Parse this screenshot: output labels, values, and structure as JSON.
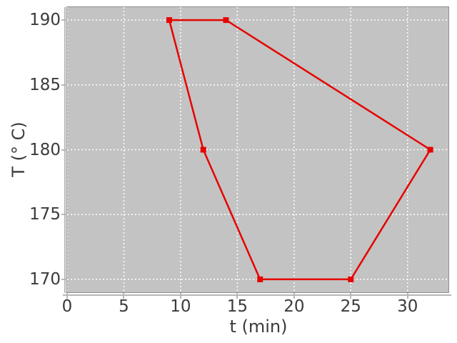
{
  "theme": {
    "background": "#ffffff",
    "panel_background": "#c3c3c3",
    "panel_border": "#8e8e8e",
    "grid_color": "#ffffff",
    "spine_color": "#b7b7b7",
    "text_color": "#3b3b3b"
  },
  "chart_data": {
    "type": "line",
    "title": "",
    "xlabel": "t (min)",
    "ylabel": "T (° C)",
    "xlim": [
      0,
      33.6
    ],
    "ylim": [
      169,
      191
    ],
    "x_ticks": [
      0,
      5,
      10,
      15,
      20,
      25,
      30
    ],
    "y_ticks": [
      170,
      175,
      180,
      185,
      190
    ],
    "grid": true,
    "grid_style": "dotted",
    "legend": "none",
    "series": [
      {
        "name": "temperature-cycle",
        "color": "#e60400",
        "marker": "square",
        "marker_size": 8,
        "line_width": 2.5,
        "closed": true,
        "points": [
          [
            9,
            190
          ],
          [
            14,
            190
          ],
          [
            32,
            180
          ],
          [
            25,
            170
          ],
          [
            17,
            170
          ],
          [
            12,
            180
          ]
        ]
      }
    ]
  }
}
